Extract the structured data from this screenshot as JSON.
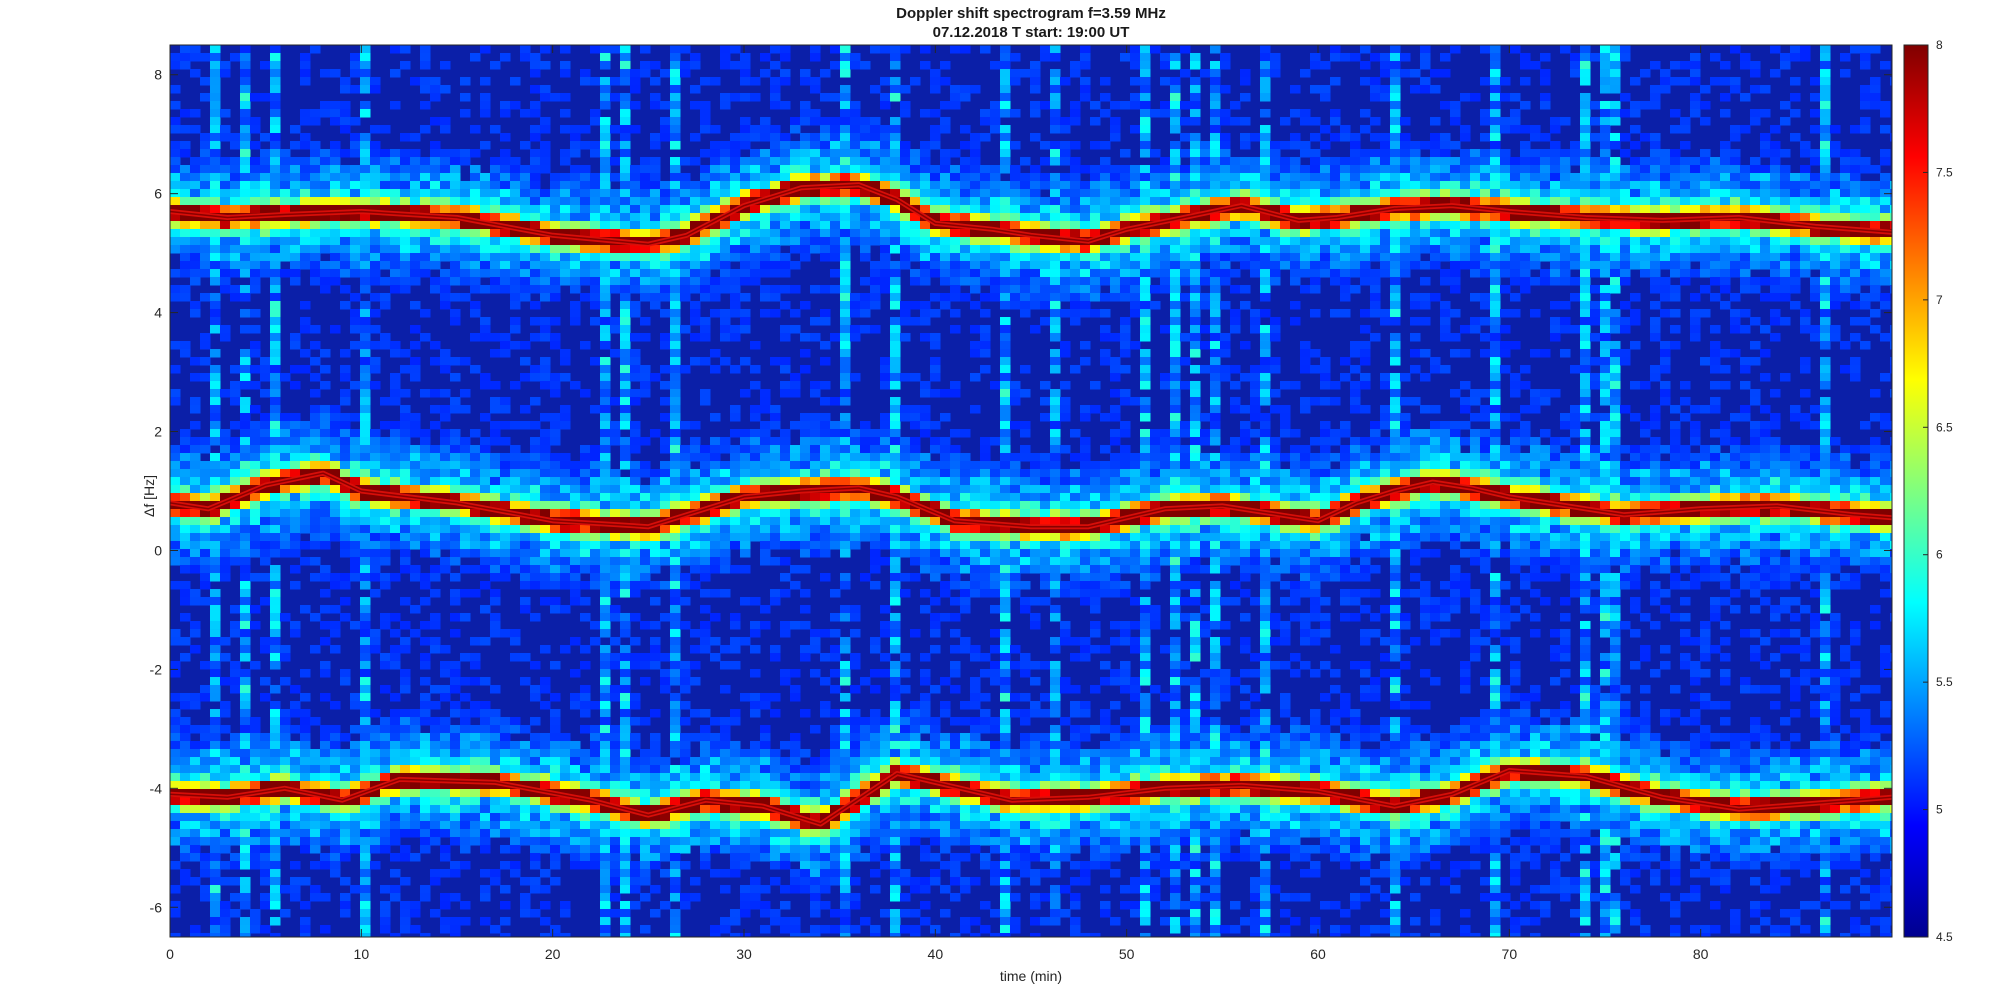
{
  "chart_data": {
    "type": "heatmap",
    "title": "Doppler shift spectrogram f=3.59 MHz",
    "subtitle": "07.12.2018   T start: 19:00 UT",
    "xlabel": "time (min)",
    "ylabel": "Δf [Hz]",
    "xlim": [
      0,
      90
    ],
    "ylim": [
      -6.5,
      8.5
    ],
    "x_ticks": [
      0,
      10,
      20,
      30,
      40,
      50,
      60,
      70,
      80
    ],
    "y_ticks": [
      -6,
      -4,
      -2,
      0,
      2,
      4,
      6,
      8
    ],
    "colorbar": {
      "colormap": "jet",
      "clim": [
        4.5,
        8
      ],
      "ticks": [
        4.5,
        5,
        5.5,
        6,
        6.5,
        7,
        7.5,
        8
      ]
    },
    "grid": false,
    "traces": [
      {
        "time_min": [
          0,
          3,
          6,
          10,
          15,
          20,
          25,
          27,
          30,
          33,
          36,
          38,
          40,
          43,
          45,
          48,
          50,
          53,
          56,
          59,
          61,
          64,
          67,
          70,
          74,
          78,
          82,
          86,
          90
        ],
        "freq_hz": [
          5.7,
          5.6,
          5.65,
          5.7,
          5.6,
          5.3,
          5.15,
          5.3,
          5.8,
          6.1,
          6.15,
          5.9,
          5.5,
          5.4,
          5.3,
          5.2,
          5.4,
          5.6,
          5.8,
          5.55,
          5.6,
          5.75,
          5.8,
          5.7,
          5.6,
          5.55,
          5.6,
          5.45,
          5.35
        ]
      },
      {
        "time_min": [
          0,
          2,
          5,
          8,
          10,
          15,
          20,
          25,
          30,
          33,
          36,
          38,
          41,
          45,
          48,
          52,
          55,
          58,
          60,
          62,
          64,
          66,
          68,
          70,
          72,
          76,
          80,
          84,
          88,
          90
        ],
        "freq_hz": [
          0.8,
          0.7,
          1.1,
          1.3,
          1.0,
          0.8,
          0.5,
          0.4,
          0.9,
          1.0,
          1.05,
          0.9,
          0.5,
          0.4,
          0.4,
          0.7,
          0.75,
          0.6,
          0.5,
          0.8,
          1.0,
          1.15,
          1.05,
          0.9,
          0.8,
          0.6,
          0.7,
          0.75,
          0.6,
          0.55
        ]
      },
      {
        "time_min": [
          0,
          3,
          6,
          9,
          12,
          17,
          22,
          25,
          28,
          31,
          34,
          38,
          40,
          44,
          48,
          52,
          56,
          60,
          64,
          67,
          70,
          74,
          78,
          82,
          86,
          90
        ],
        "freq_hz": [
          -4.1,
          -4.15,
          -4.0,
          -4.2,
          -3.85,
          -3.9,
          -4.2,
          -4.45,
          -4.2,
          -4.3,
          -4.6,
          -3.75,
          -3.9,
          -4.2,
          -4.15,
          -4.0,
          -3.95,
          -4.05,
          -4.3,
          -4.1,
          -3.7,
          -3.8,
          -4.15,
          -4.35,
          -4.25,
          -4.15
        ]
      }
    ]
  }
}
